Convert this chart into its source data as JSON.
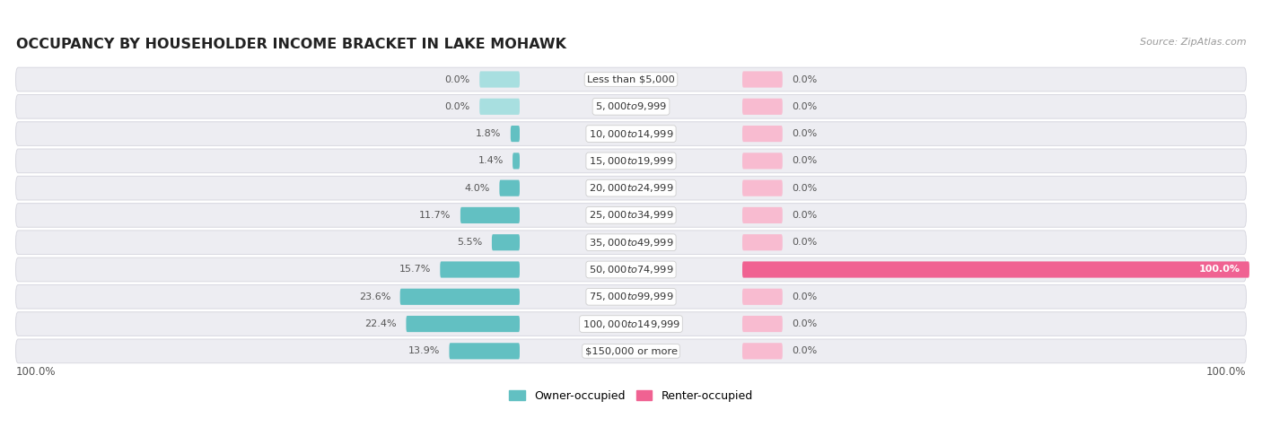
{
  "title": "OCCUPANCY BY HOUSEHOLDER INCOME BRACKET IN LAKE MOHAWK",
  "source": "Source: ZipAtlas.com",
  "categories": [
    "Less than $5,000",
    "$5,000 to $9,999",
    "$10,000 to $14,999",
    "$15,000 to $19,999",
    "$20,000 to $24,999",
    "$25,000 to $34,999",
    "$35,000 to $49,999",
    "$50,000 to $74,999",
    "$75,000 to $99,999",
    "$100,000 to $149,999",
    "$150,000 or more"
  ],
  "owner_values": [
    0.0,
    0.0,
    1.8,
    1.4,
    4.0,
    11.7,
    5.5,
    15.7,
    23.6,
    22.4,
    13.9
  ],
  "renter_values": [
    0.0,
    0.0,
    0.0,
    0.0,
    0.0,
    0.0,
    0.0,
    100.0,
    0.0,
    0.0,
    0.0
  ],
  "owner_color": "#62c0c2",
  "renter_color_full": "#f06292",
  "renter_color_stub": "#f8bbd0",
  "owner_color_stub": "#a8dfe0",
  "row_bg_color": "#ededf2",
  "row_border_color": "#d8d8e0",
  "label_color": "#555555",
  "title_color": "#222222",
  "source_color": "#999999",
  "figsize": [
    14.06,
    4.86
  ],
  "dpi": 100,
  "max_owner_pct": 100.0,
  "max_renter_pct": 100.0
}
